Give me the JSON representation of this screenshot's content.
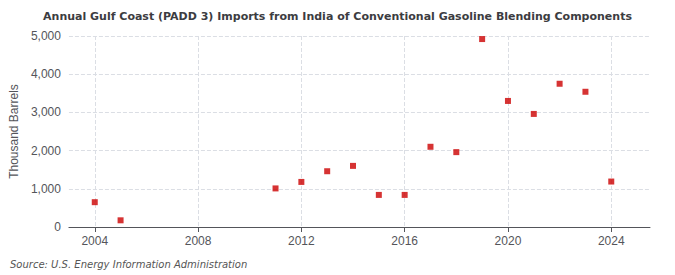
{
  "chart_data": {
    "type": "scatter",
    "title": "Annual Gulf Coast (PADD 3) Imports from India of Conventional Gasoline Blending Components",
    "ylabel": "Thousand Barrels",
    "annotation": "Source: U.S. Energy Information Administration",
    "x": [
      2004,
      2005,
      2011,
      2012,
      2013,
      2014,
      2015,
      2016,
      2017,
      2018,
      2019,
      2020,
      2021,
      2022,
      2023,
      2024
    ],
    "values": [
      650,
      175,
      1010,
      1180,
      1460,
      1600,
      840,
      840,
      2100,
      1960,
      4920,
      3300,
      2960,
      3750,
      3540,
      1190
    ],
    "color": "#cc0000",
    "marker": "square",
    "xlim": [
      2003.0,
      2025.5
    ],
    "xticks": [
      2004,
      2008,
      2012,
      2016,
      2020,
      2024
    ],
    "ylim": [
      0,
      5000
    ],
    "yticks": [
      0,
      {
        "value": 1000,
        "label": "1,000"
      },
      {
        "value": 2000,
        "label": "2,000"
      },
      {
        "value": 3000,
        "label": "3,000"
      },
      {
        "value": 4000,
        "label": "4,000"
      },
      {
        "value": 5000,
        "label": "5,000"
      }
    ],
    "grid": true
  }
}
